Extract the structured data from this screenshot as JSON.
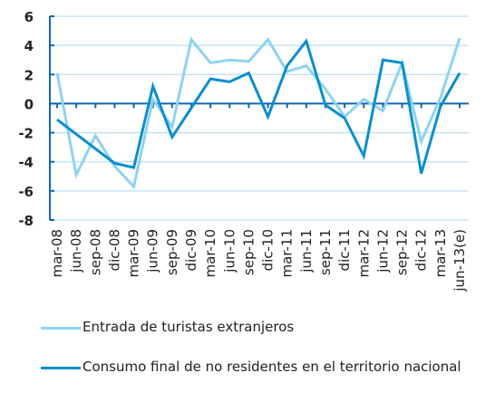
{
  "chart_data": {
    "type": "line",
    "categories": [
      "mar-08",
      "jun-08",
      "sep-08",
      "dic-08",
      "mar-09",
      "jun-09",
      "sep-09",
      "dic-09",
      "mar-10",
      "jun-10",
      "sep-10",
      "dic-10",
      "mar-11",
      "jun-11",
      "sep-11",
      "dic-11",
      "mar-12",
      "jun-12",
      "sep-12",
      "dic-12",
      "mar-13",
      "jun-13(e)"
    ],
    "series": [
      {
        "name": "Entrada de turistas extranjeros",
        "color": "#8fd3f1",
        "values": [
          2.1,
          -4.9,
          -2.2,
          -4.3,
          -5.7,
          0.3,
          -1.6,
          4.4,
          2.8,
          3.0,
          2.9,
          4.4,
          2.2,
          2.6,
          1.0,
          -0.9,
          0.3,
          -0.5,
          2.8,
          -2.6,
          0.4,
          4.5
        ]
      },
      {
        "name": "Consumo final de no residentes en el territorio nacional",
        "color": "#0a8fce",
        "values": [
          -1.1,
          -2.1,
          -3.1,
          -4.1,
          -4.4,
          1.2,
          -2.3,
          -0.3,
          1.7,
          1.5,
          2.1,
          -0.9,
          2.6,
          4.3,
          -0.1,
          -1.0,
          -3.6,
          3.0,
          2.8,
          -4.8,
          -0.2,
          2.1
        ]
      }
    ],
    "ylim": [
      -8,
      6
    ],
    "yticks": [
      -8,
      -6,
      -4,
      -2,
      0,
      2,
      4,
      6
    ],
    "grid": true
  }
}
